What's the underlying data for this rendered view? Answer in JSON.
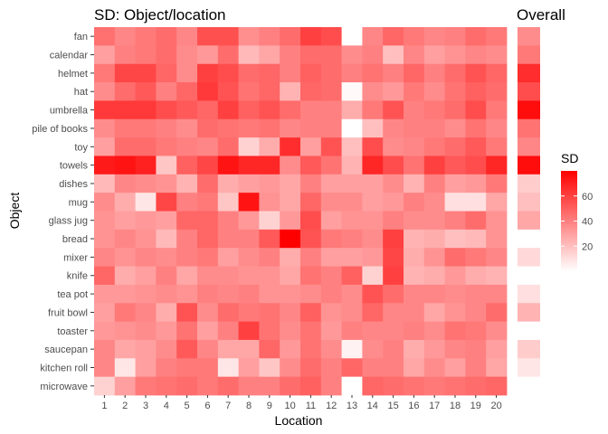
{
  "chart_data": {
    "type": "heatmap",
    "title": "SD: Object/location",
    "overall_title": "Overall",
    "xlabel": "Location",
    "ylabel": "Object",
    "x_categories": [
      "1",
      "2",
      "3",
      "4",
      "5",
      "6",
      "7",
      "8",
      "9",
      "10",
      "11",
      "12",
      "13",
      "14",
      "15",
      "16",
      "17",
      "18",
      "19",
      "20"
    ],
    "y_categories": [
      "fan",
      "calendar",
      "helmet",
      "hat",
      "umbrella",
      "pile of books",
      "toy",
      "towels",
      "dishes",
      "mug",
      "glass jug",
      "bread",
      "mixer",
      "knife",
      "tea pot",
      "fruit bowl",
      "toaster",
      "saucepan",
      "kitchen roll",
      "microwave"
    ],
    "values": [
      [
        45,
        38,
        42,
        46,
        38,
        55,
        55,
        35,
        40,
        46,
        60,
        56,
        0,
        38,
        48,
        42,
        38,
        40,
        46,
        42
      ],
      [
        30,
        40,
        42,
        46,
        36,
        32,
        46,
        22,
        28,
        40,
        46,
        46,
        36,
        40,
        20,
        38,
        30,
        34,
        38,
        36
      ],
      [
        42,
        58,
        58,
        48,
        36,
        60,
        56,
        46,
        48,
        40,
        50,
        46,
        40,
        44,
        40,
        48,
        40,
        46,
        54,
        48
      ],
      [
        36,
        46,
        52,
        40,
        48,
        62,
        54,
        44,
        48,
        24,
        48,
        46,
        2,
        36,
        32,
        42,
        36,
        44,
        50,
        46
      ],
      [
        62,
        62,
        62,
        56,
        52,
        48,
        60,
        50,
        54,
        46,
        40,
        40,
        26,
        42,
        54,
        40,
        42,
        46,
        56,
        42
      ],
      [
        36,
        42,
        42,
        40,
        36,
        46,
        44,
        42,
        44,
        38,
        40,
        40,
        0,
        20,
        38,
        40,
        40,
        36,
        44,
        38
      ],
      [
        30,
        46,
        46,
        42,
        40,
        38,
        46,
        14,
        26,
        66,
        30,
        54,
        20,
        56,
        36,
        38,
        42,
        46,
        52,
        42
      ],
      [
        72,
        74,
        70,
        18,
        50,
        58,
        74,
        68,
        68,
        36,
        52,
        44,
        24,
        68,
        56,
        44,
        60,
        52,
        56,
        68
      ],
      [
        22,
        38,
        36,
        34,
        24,
        46,
        26,
        30,
        32,
        28,
        40,
        30,
        30,
        30,
        36,
        24,
        40,
        30,
        32,
        42
      ],
      [
        36,
        26,
        8,
        58,
        40,
        42,
        18,
        74,
        34,
        28,
        48,
        36,
        36,
        30,
        32,
        40,
        36,
        10,
        10,
        28
      ],
      [
        34,
        30,
        32,
        30,
        48,
        48,
        40,
        32,
        14,
        32,
        56,
        30,
        34,
        34,
        40,
        36,
        36,
        40,
        46,
        34
      ],
      [
        34,
        38,
        34,
        22,
        40,
        48,
        40,
        40,
        52,
        88,
        54,
        42,
        40,
        36,
        60,
        24,
        26,
        20,
        22,
        34
      ],
      [
        38,
        34,
        38,
        36,
        40,
        42,
        30,
        36,
        40,
        26,
        40,
        30,
        30,
        32,
        58,
        26,
        34,
        46,
        42,
        38
      ],
      [
        48,
        26,
        30,
        40,
        28,
        36,
        36,
        34,
        34,
        28,
        44,
        40,
        50,
        14,
        60,
        24,
        26,
        32,
        26,
        24
      ],
      [
        32,
        32,
        34,
        36,
        34,
        40,
        38,
        40,
        34,
        34,
        36,
        40,
        36,
        54,
        46,
        38,
        38,
        36,
        38,
        38
      ],
      [
        30,
        42,
        38,
        26,
        54,
        36,
        46,
        42,
        44,
        38,
        50,
        34,
        36,
        48,
        38,
        38,
        28,
        34,
        38,
        46
      ],
      [
        32,
        34,
        36,
        32,
        44,
        30,
        40,
        60,
        44,
        36,
        44,
        32,
        40,
        38,
        38,
        40,
        36,
        44,
        42,
        36
      ],
      [
        38,
        28,
        30,
        36,
        52,
        38,
        28,
        28,
        48,
        32,
        44,
        36,
        4,
        36,
        40,
        26,
        32,
        38,
        40,
        30
      ],
      [
        38,
        8,
        30,
        40,
        42,
        42,
        8,
        30,
        18,
        36,
        46,
        40,
        48,
        40,
        40,
        28,
        36,
        30,
        40,
        28
      ],
      [
        14,
        30,
        42,
        44,
        46,
        42,
        46,
        40,
        40,
        46,
        50,
        40,
        0,
        48,
        46,
        44,
        42,
        44,
        46,
        48
      ]
    ],
    "overall_values": [
      36,
      42,
      66,
      56,
      76,
      44,
      38,
      76,
      16,
      20,
      28,
      0,
      12,
      0,
      10,
      24,
      0,
      16,
      8,
      0
    ],
    "legend": {
      "title": "SD",
      "ticks": [
        20,
        40,
        60
      ],
      "range": [
        0,
        80
      ]
    },
    "colors": {
      "low": "#ffffff",
      "high": "#ff0000"
    }
  }
}
